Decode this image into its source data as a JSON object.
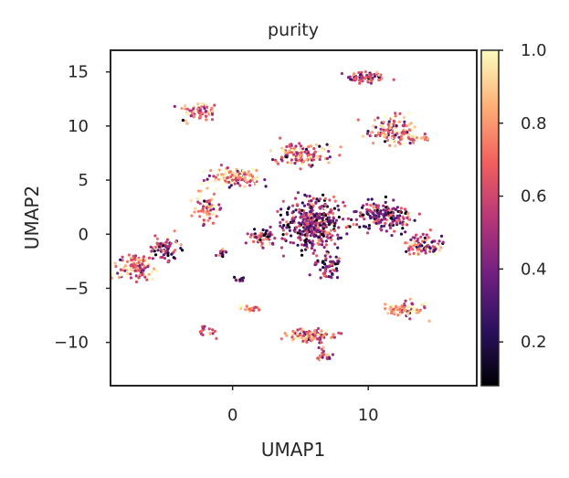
{
  "chart_data": {
    "type": "scatter",
    "title": "purity",
    "xlabel": "UMAP1",
    "ylabel": "UMAP2",
    "xlim": [
      -9.0,
      18.0
    ],
    "ylim": [
      -14.0,
      17.0
    ],
    "xticks": [
      {
        "value": 0,
        "label": "0"
      },
      {
        "value": 10,
        "label": "10"
      }
    ],
    "yticks": [
      {
        "value": 15,
        "label": "15"
      },
      {
        "value": 10,
        "label": "10"
      },
      {
        "value": 5,
        "label": "5"
      },
      {
        "value": 0,
        "label": "0"
      },
      {
        "value": -5,
        "label": "−5"
      },
      {
        "value": -10,
        "label": "−10"
      }
    ],
    "grid": false,
    "colorbar": {
      "colormap": "magma",
      "range": [
        0.08,
        1.0
      ],
      "ticks": [
        {
          "value": 1.0,
          "label": "1.0"
        },
        {
          "value": 0.8,
          "label": "0.8"
        },
        {
          "value": 0.6,
          "label": "0.6"
        },
        {
          "value": 0.4,
          "label": "0.4"
        },
        {
          "value": 0.2,
          "label": "0.2"
        }
      ],
      "stops": [
        "#000004",
        "#2c115f",
        "#721f81",
        "#b73779",
        "#f1605d",
        "#feb078",
        "#fcfdbf"
      ]
    },
    "clusters": [
      {
        "x": 9.9,
        "y": 14.5,
        "sx": 1.3,
        "sy": 0.55,
        "n": 70,
        "purity": 0.55
      },
      {
        "x": -2.5,
        "y": 11.3,
        "sx": 1.3,
        "sy": 0.9,
        "n": 70,
        "purity": 0.78
      },
      {
        "x": 11.8,
        "y": 9.6,
        "sx": 1.6,
        "sy": 1.2,
        "n": 130,
        "purity": 0.65
      },
      {
        "x": 13.5,
        "y": 8.8,
        "sx": 0.9,
        "sy": 0.3,
        "n": 20,
        "purity": 0.8
      },
      {
        "x": 5.0,
        "y": 7.4,
        "sx": 1.8,
        "sy": 0.9,
        "n": 140,
        "purity": 0.7
      },
      {
        "x": 0.2,
        "y": 5.2,
        "sx": 1.8,
        "sy": 0.9,
        "n": 120,
        "purity": 0.75
      },
      {
        "x": -1.8,
        "y": 2.4,
        "sx": 0.9,
        "sy": 1.3,
        "n": 60,
        "purity": 0.72
      },
      {
        "x": 2.1,
        "y": -0.2,
        "sx": 1.1,
        "sy": 0.7,
        "n": 55,
        "purity": 0.5
      },
      {
        "x": 6.0,
        "y": 1.0,
        "sx": 2.0,
        "sy": 2.3,
        "n": 380,
        "purity": 0.45
      },
      {
        "x": 7.0,
        "y": -2.9,
        "sx": 0.9,
        "sy": 1.2,
        "n": 60,
        "purity": 0.42
      },
      {
        "x": 11.2,
        "y": 1.7,
        "sx": 1.9,
        "sy": 1.1,
        "n": 160,
        "purity": 0.42
      },
      {
        "x": 14.0,
        "y": -0.9,
        "sx": 1.4,
        "sy": 0.9,
        "n": 90,
        "purity": 0.6
      },
      {
        "x": -7.0,
        "y": -3.0,
        "sx": 1.3,
        "sy": 1.1,
        "n": 120,
        "purity": 0.72
      },
      {
        "x": -5.0,
        "y": -1.3,
        "sx": 1.0,
        "sy": 1.0,
        "n": 70,
        "purity": 0.48
      },
      {
        "x": -0.8,
        "y": -1.7,
        "sx": 0.3,
        "sy": 0.4,
        "n": 14,
        "purity": 0.35
      },
      {
        "x": 0.5,
        "y": -4.2,
        "sx": 0.6,
        "sy": 0.2,
        "n": 10,
        "purity": 0.35
      },
      {
        "x": 1.3,
        "y": -6.9,
        "sx": 0.8,
        "sy": 0.35,
        "n": 24,
        "purity": 0.75
      },
      {
        "x": 12.8,
        "y": -7.0,
        "sx": 1.3,
        "sy": 0.6,
        "n": 75,
        "purity": 0.8
      },
      {
        "x": 5.8,
        "y": -9.4,
        "sx": 1.8,
        "sy": 0.55,
        "n": 110,
        "purity": 0.7
      },
      {
        "x": 6.6,
        "y": -11.3,
        "sx": 0.6,
        "sy": 0.6,
        "n": 25,
        "purity": 0.6
      },
      {
        "x": -1.8,
        "y": -8.8,
        "sx": 0.7,
        "sy": 0.7,
        "n": 16,
        "purity": 0.65
      }
    ]
  }
}
